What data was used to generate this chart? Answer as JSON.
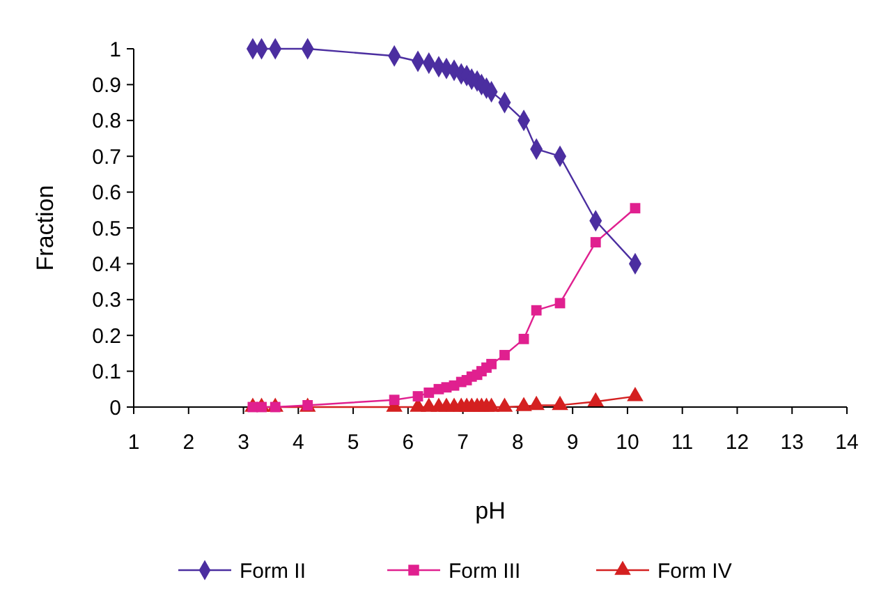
{
  "chart_data": {
    "type": "line",
    "xlabel": "pH",
    "ylabel": "Fraction",
    "x": [
      3.17,
      3.33,
      3.58,
      4.17,
      5.75,
      6.18,
      6.38,
      6.56,
      6.7,
      6.84,
      6.97,
      7.07,
      7.16,
      7.26,
      7.34,
      7.43,
      7.52,
      7.76,
      8.11,
      8.34,
      8.77,
      9.42,
      10.14
    ],
    "series": [
      {
        "name": "Form II",
        "color": "#4b2ea0",
        "marker": "diamond",
        "values": [
          1,
          1,
          1,
          1,
          0.98,
          0.965,
          0.96,
          0.95,
          0.945,
          0.94,
          0.93,
          0.925,
          0.915,
          0.91,
          0.9,
          0.89,
          0.88,
          0.85,
          0.8,
          0.72,
          0.7,
          0.52,
          0.4
        ]
      },
      {
        "name": "Form III",
        "color": "#e0208f",
        "marker": "square",
        "values": [
          0,
          0,
          0,
          0.005,
          0.02,
          0.03,
          0.04,
          0.05,
          0.055,
          0.06,
          0.07,
          0.075,
          0.085,
          0.09,
          0.1,
          0.11,
          0.12,
          0.145,
          0.19,
          0.27,
          0.29,
          0.46,
          0.555
        ]
      },
      {
        "name": "Form IV",
        "color": "#d42020",
        "marker": "triangle",
        "values": [
          0,
          0,
          0,
          0,
          0,
          0,
          0,
          0,
          0,
          0,
          0,
          0,
          0,
          0,
          0,
          0,
          0,
          0,
          0.002,
          0.005,
          0.005,
          0.015,
          0.03
        ]
      }
    ],
    "xlim": [
      1,
      14
    ],
    "xticks": [
      1,
      2,
      3,
      4,
      5,
      6,
      7,
      8,
      9,
      10,
      11,
      12,
      13,
      14
    ],
    "ylim": [
      0,
      1
    ],
    "yticks": [
      0,
      0.1,
      0.2,
      0.3,
      0.4,
      0.5,
      0.6,
      0.7,
      0.8,
      0.9,
      1
    ],
    "grid": false,
    "legend": "bottom"
  }
}
